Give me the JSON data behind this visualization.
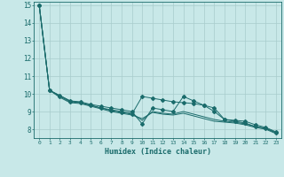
{
  "xlabel": "Humidex (Indice chaleur)",
  "bg_color": "#c8e8e8",
  "grid_color": "#a8cccc",
  "line_color": "#1a6b6b",
  "xlim": [
    -0.5,
    23.5
  ],
  "ylim": [
    7.5,
    15.2
  ],
  "yticks": [
    8,
    9,
    10,
    11,
    12,
    13,
    14,
    15
  ],
  "xticks": [
    0,
    1,
    2,
    3,
    4,
    5,
    6,
    7,
    8,
    9,
    10,
    11,
    12,
    13,
    14,
    15,
    16,
    17,
    18,
    19,
    20,
    21,
    22,
    23
  ],
  "series1": [
    [
      0,
      15.0
    ],
    [
      1,
      10.2
    ],
    [
      2,
      9.9
    ],
    [
      3,
      9.6
    ],
    [
      4,
      9.55
    ],
    [
      5,
      9.4
    ],
    [
      6,
      9.3
    ],
    [
      7,
      9.2
    ],
    [
      8,
      9.1
    ],
    [
      9,
      9.0
    ],
    [
      10,
      8.3
    ],
    [
      11,
      9.2
    ],
    [
      12,
      9.1
    ],
    [
      13,
      9.0
    ],
    [
      14,
      9.85
    ],
    [
      15,
      9.6
    ],
    [
      16,
      9.35
    ],
    [
      17,
      9.0
    ],
    [
      18,
      8.55
    ],
    [
      19,
      8.45
    ],
    [
      20,
      8.35
    ],
    [
      21,
      8.15
    ],
    [
      22,
      8.05
    ],
    [
      23,
      7.8
    ]
  ],
  "series2": [
    [
      0,
      15.0
    ],
    [
      1,
      10.2
    ],
    [
      2,
      9.85
    ],
    [
      3,
      9.55
    ],
    [
      4,
      9.5
    ],
    [
      5,
      9.35
    ],
    [
      6,
      9.2
    ],
    [
      7,
      9.05
    ],
    [
      8,
      8.95
    ],
    [
      9,
      8.85
    ],
    [
      10,
      9.85
    ],
    [
      11,
      9.75
    ],
    [
      12,
      9.65
    ],
    [
      13,
      9.55
    ],
    [
      14,
      9.5
    ],
    [
      15,
      9.45
    ],
    [
      16,
      9.35
    ],
    [
      17,
      9.2
    ],
    [
      18,
      8.55
    ],
    [
      19,
      8.5
    ],
    [
      20,
      8.45
    ],
    [
      21,
      8.25
    ],
    [
      22,
      8.1
    ],
    [
      23,
      7.85
    ]
  ],
  "series3": [
    [
      0,
      15.0
    ],
    [
      1,
      10.2
    ],
    [
      2,
      9.9
    ],
    [
      3,
      9.6
    ],
    [
      4,
      9.5
    ],
    [
      5,
      9.35
    ],
    [
      6,
      9.2
    ],
    [
      7,
      9.1
    ],
    [
      8,
      9.0
    ],
    [
      9,
      8.9
    ],
    [
      10,
      8.5
    ],
    [
      11,
      9.0
    ],
    [
      12,
      8.9
    ],
    [
      13,
      8.85
    ],
    [
      14,
      9.0
    ],
    [
      15,
      8.85
    ],
    [
      16,
      8.7
    ],
    [
      17,
      8.55
    ],
    [
      18,
      8.45
    ],
    [
      19,
      8.4
    ],
    [
      20,
      8.3
    ],
    [
      21,
      8.15
    ],
    [
      22,
      8.05
    ],
    [
      23,
      7.8
    ]
  ],
  "series4": [
    [
      0,
      15.0
    ],
    [
      1,
      10.2
    ],
    [
      2,
      9.8
    ],
    [
      3,
      9.5
    ],
    [
      4,
      9.45
    ],
    [
      5,
      9.3
    ],
    [
      6,
      9.15
    ],
    [
      7,
      9.0
    ],
    [
      8,
      8.9
    ],
    [
      9,
      8.8
    ],
    [
      10,
      8.6
    ],
    [
      11,
      8.95
    ],
    [
      12,
      8.85
    ],
    [
      13,
      8.8
    ],
    [
      14,
      8.9
    ],
    [
      15,
      8.75
    ],
    [
      16,
      8.6
    ],
    [
      17,
      8.45
    ],
    [
      18,
      8.4
    ],
    [
      19,
      8.35
    ],
    [
      20,
      8.25
    ],
    [
      21,
      8.1
    ],
    [
      22,
      8.0
    ],
    [
      23,
      7.75
    ]
  ]
}
